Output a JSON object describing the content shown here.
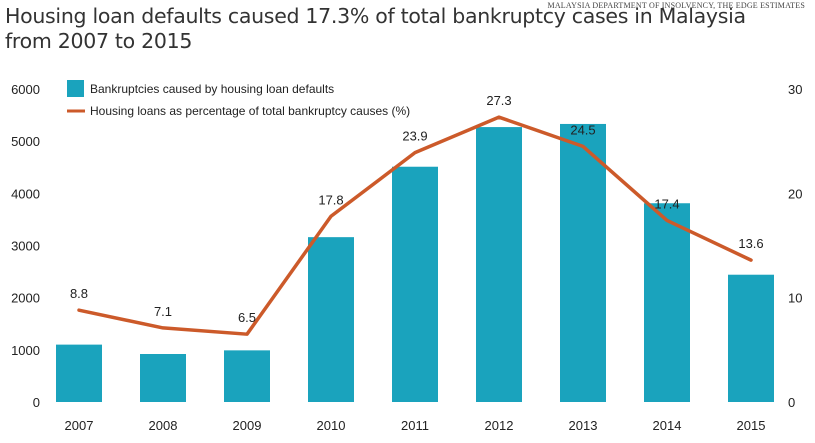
{
  "source": "MALAYSIA DEPARTMENT OF INSOLVENCY, THE EDGE ESTIMATES",
  "title_line1": "Housing loan defaults caused 17.3% of total bankruptcy cases in Malaysia",
  "title_line2": "from 2007 to 2015",
  "colors": {
    "bar": "#1aa3bd",
    "line": "#cc5a2a"
  },
  "chart_data": {
    "type": "bar",
    "categories": [
      "2007",
      "2008",
      "2009",
      "2010",
      "2011",
      "2012",
      "2013",
      "2014",
      "2015"
    ],
    "series": [
      {
        "name": "Bankruptcies caused by housing loan defaults",
        "type": "bar",
        "axis": "left",
        "values": [
          1100,
          920,
          990,
          3160,
          4510,
          5270,
          5330,
          3810,
          2440
        ]
      },
      {
        "name": "Housing loans as percentage of total bankruptcy causes (%)",
        "type": "line",
        "axis": "right",
        "values": [
          8.8,
          7.1,
          6.5,
          17.8,
          23.9,
          27.3,
          24.5,
          17.4,
          13.6
        ],
        "labels": [
          "8.8",
          "7.1",
          "6.5",
          "17.8",
          "23.9",
          "27.3",
          "24.5",
          "17.4",
          "13.6"
        ]
      }
    ],
    "y_left": {
      "min": 0,
      "max": 6000,
      "ticks": [
        "0",
        "1000",
        "2000",
        "3000",
        "4000",
        "5000",
        "6000"
      ]
    },
    "y_right": {
      "min": 0,
      "max": 30,
      "ticks": [
        "0",
        "10",
        "20",
        "30"
      ]
    },
    "grid": false,
    "legend_position": "top-left"
  }
}
